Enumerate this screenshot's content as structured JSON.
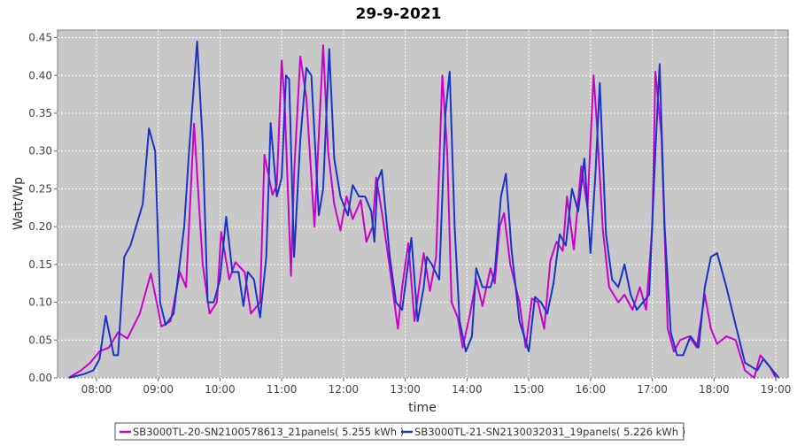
{
  "chart_data": {
    "type": "line",
    "title": "29-9-2021",
    "xlabel": "time",
    "ylabel": "Watt/Wp",
    "x_unit": "hours",
    "xlim": [
      7.37,
      19.2
    ],
    "ylim": [
      0,
      0.46
    ],
    "grid": true,
    "legend_position": "bottom",
    "x_ticks": [
      {
        "value": 8,
        "label": "08:00"
      },
      {
        "value": 9,
        "label": "09:00"
      },
      {
        "value": 10,
        "label": "10:00"
      },
      {
        "value": 11,
        "label": "11:00"
      },
      {
        "value": 12,
        "label": "12:00"
      },
      {
        "value": 13,
        "label": "13:00"
      },
      {
        "value": 14,
        "label": "14:00"
      },
      {
        "value": 15,
        "label": "15:00"
      },
      {
        "value": 16,
        "label": "16:00"
      },
      {
        "value": 17,
        "label": "17:00"
      },
      {
        "value": 18,
        "label": "18:00"
      },
      {
        "value": 19,
        "label": "19:00"
      }
    ],
    "y_ticks": [
      {
        "value": 0.0,
        "label": "0.00"
      },
      {
        "value": 0.05,
        "label": "0.05"
      },
      {
        "value": 0.1,
        "label": "0.10"
      },
      {
        "value": 0.15,
        "label": "0.15"
      },
      {
        "value": 0.2,
        "label": "0.20"
      },
      {
        "value": 0.25,
        "label": "0.25"
      },
      {
        "value": 0.3,
        "label": "0.30"
      },
      {
        "value": 0.35,
        "label": "0.35"
      },
      {
        "value": 0.4,
        "label": "0.40"
      },
      {
        "value": 0.45,
        "label": "0.45"
      }
    ],
    "series": [
      {
        "name": "SB3000TL-20-SN2100578613_21panels( 5.255 kWh )",
        "color": "#cc00cc",
        "points": [
          [
            7.55,
            0.0
          ],
          [
            7.75,
            0.01
          ],
          [
            7.9,
            0.02
          ],
          [
            8.05,
            0.035
          ],
          [
            8.2,
            0.04
          ],
          [
            8.35,
            0.06
          ],
          [
            8.5,
            0.052
          ],
          [
            8.7,
            0.085
          ],
          [
            8.88,
            0.138
          ],
          [
            9.0,
            0.09
          ],
          [
            9.05,
            0.068
          ],
          [
            9.2,
            0.075
          ],
          [
            9.35,
            0.14
          ],
          [
            9.45,
            0.12
          ],
          [
            9.58,
            0.336
          ],
          [
            9.72,
            0.15
          ],
          [
            9.83,
            0.085
          ],
          [
            9.95,
            0.1
          ],
          [
            10.02,
            0.193
          ],
          [
            10.15,
            0.13
          ],
          [
            10.25,
            0.153
          ],
          [
            10.4,
            0.14
          ],
          [
            10.5,
            0.085
          ],
          [
            10.65,
            0.1
          ],
          [
            10.72,
            0.295
          ],
          [
            10.85,
            0.242
          ],
          [
            10.92,
            0.255
          ],
          [
            11.0,
            0.42
          ],
          [
            11.05,
            0.36
          ],
          [
            11.15,
            0.135
          ],
          [
            11.2,
            0.27
          ],
          [
            11.3,
            0.425
          ],
          [
            11.4,
            0.37
          ],
          [
            11.53,
            0.2
          ],
          [
            11.67,
            0.44
          ],
          [
            11.75,
            0.3
          ],
          [
            11.85,
            0.23
          ],
          [
            11.95,
            0.195
          ],
          [
            12.05,
            0.24
          ],
          [
            12.15,
            0.21
          ],
          [
            12.28,
            0.235
          ],
          [
            12.37,
            0.18
          ],
          [
            12.47,
            0.2
          ],
          [
            12.53,
            0.265
          ],
          [
            12.63,
            0.215
          ],
          [
            12.75,
            0.145
          ],
          [
            12.88,
            0.065
          ],
          [
            12.95,
            0.12
          ],
          [
            13.05,
            0.178
          ],
          [
            13.15,
            0.075
          ],
          [
            13.3,
            0.165
          ],
          [
            13.4,
            0.115
          ],
          [
            13.5,
            0.16
          ],
          [
            13.6,
            0.4
          ],
          [
            13.68,
            0.3
          ],
          [
            13.75,
            0.1
          ],
          [
            13.85,
            0.08
          ],
          [
            13.93,
            0.04
          ],
          [
            14.05,
            0.085
          ],
          [
            14.15,
            0.13
          ],
          [
            14.25,
            0.095
          ],
          [
            14.38,
            0.145
          ],
          [
            14.45,
            0.125
          ],
          [
            14.53,
            0.2
          ],
          [
            14.6,
            0.218
          ],
          [
            14.7,
            0.15
          ],
          [
            14.85,
            0.1
          ],
          [
            14.95,
            0.04
          ],
          [
            15.05,
            0.105
          ],
          [
            15.15,
            0.1
          ],
          [
            15.25,
            0.065
          ],
          [
            15.35,
            0.155
          ],
          [
            15.45,
            0.18
          ],
          [
            15.55,
            0.168
          ],
          [
            15.62,
            0.24
          ],
          [
            15.73,
            0.17
          ],
          [
            15.85,
            0.28
          ],
          [
            15.95,
            0.225
          ],
          [
            16.05,
            0.4
          ],
          [
            16.1,
            0.34
          ],
          [
            16.2,
            0.195
          ],
          [
            16.3,
            0.12
          ],
          [
            16.45,
            0.1
          ],
          [
            16.55,
            0.11
          ],
          [
            16.68,
            0.09
          ],
          [
            16.8,
            0.12
          ],
          [
            16.9,
            0.09
          ],
          [
            17.0,
            0.2
          ],
          [
            17.05,
            0.405
          ],
          [
            17.15,
            0.32
          ],
          [
            17.25,
            0.065
          ],
          [
            17.35,
            0.035
          ],
          [
            17.45,
            0.05
          ],
          [
            17.6,
            0.055
          ],
          [
            17.72,
            0.04
          ],
          [
            17.85,
            0.11
          ],
          [
            17.95,
            0.065
          ],
          [
            18.05,
            0.045
          ],
          [
            18.2,
            0.055
          ],
          [
            18.35,
            0.05
          ],
          [
            18.5,
            0.01
          ],
          [
            18.65,
            0.0
          ],
          [
            18.75,
            0.03
          ],
          [
            18.9,
            0.015
          ],
          [
            19.0,
            0.0
          ]
        ]
      },
      {
        "name": "SB3000TL-21-SN2130032031_19panels( 5.226 kWh )",
        "color": "#1a33cc",
        "points": [
          [
            7.55,
            0.0
          ],
          [
            7.8,
            0.005
          ],
          [
            7.95,
            0.01
          ],
          [
            8.05,
            0.025
          ],
          [
            8.15,
            0.082
          ],
          [
            8.28,
            0.03
          ],
          [
            8.35,
            0.03
          ],
          [
            8.45,
            0.16
          ],
          [
            8.55,
            0.175
          ],
          [
            8.75,
            0.23
          ],
          [
            8.85,
            0.33
          ],
          [
            8.95,
            0.3
          ],
          [
            9.03,
            0.1
          ],
          [
            9.12,
            0.07
          ],
          [
            9.25,
            0.085
          ],
          [
            9.42,
            0.2
          ],
          [
            9.5,
            0.3
          ],
          [
            9.63,
            0.445
          ],
          [
            9.72,
            0.31
          ],
          [
            9.8,
            0.1
          ],
          [
            9.9,
            0.1
          ],
          [
            10.0,
            0.13
          ],
          [
            10.1,
            0.213
          ],
          [
            10.2,
            0.14
          ],
          [
            10.3,
            0.14
          ],
          [
            10.38,
            0.095
          ],
          [
            10.45,
            0.14
          ],
          [
            10.55,
            0.13
          ],
          [
            10.65,
            0.08
          ],
          [
            10.75,
            0.16
          ],
          [
            10.82,
            0.337
          ],
          [
            10.92,
            0.24
          ],
          [
            11.0,
            0.265
          ],
          [
            11.07,
            0.4
          ],
          [
            11.12,
            0.395
          ],
          [
            11.2,
            0.16
          ],
          [
            11.3,
            0.315
          ],
          [
            11.4,
            0.41
          ],
          [
            11.48,
            0.4
          ],
          [
            11.6,
            0.215
          ],
          [
            11.67,
            0.25
          ],
          [
            11.77,
            0.435
          ],
          [
            11.85,
            0.29
          ],
          [
            11.95,
            0.24
          ],
          [
            12.07,
            0.215
          ],
          [
            12.15,
            0.255
          ],
          [
            12.25,
            0.24
          ],
          [
            12.35,
            0.24
          ],
          [
            12.45,
            0.22
          ],
          [
            12.5,
            0.18
          ],
          [
            12.55,
            0.26
          ],
          [
            12.62,
            0.275
          ],
          [
            12.75,
            0.16
          ],
          [
            12.85,
            0.1
          ],
          [
            12.95,
            0.09
          ],
          [
            13.1,
            0.185
          ],
          [
            13.2,
            0.075
          ],
          [
            13.3,
            0.12
          ],
          [
            13.35,
            0.16
          ],
          [
            13.43,
            0.15
          ],
          [
            13.55,
            0.13
          ],
          [
            13.65,
            0.35
          ],
          [
            13.72,
            0.405
          ],
          [
            13.8,
            0.2
          ],
          [
            13.88,
            0.075
          ],
          [
            13.98,
            0.035
          ],
          [
            14.08,
            0.055
          ],
          [
            14.15,
            0.145
          ],
          [
            14.25,
            0.12
          ],
          [
            14.38,
            0.12
          ],
          [
            14.45,
            0.14
          ],
          [
            14.55,
            0.24
          ],
          [
            14.63,
            0.27
          ],
          [
            14.72,
            0.17
          ],
          [
            14.85,
            0.075
          ],
          [
            15.0,
            0.035
          ],
          [
            15.1,
            0.107
          ],
          [
            15.2,
            0.1
          ],
          [
            15.3,
            0.085
          ],
          [
            15.4,
            0.125
          ],
          [
            15.5,
            0.19
          ],
          [
            15.6,
            0.175
          ],
          [
            15.7,
            0.25
          ],
          [
            15.8,
            0.22
          ],
          [
            15.9,
            0.29
          ],
          [
            16.0,
            0.165
          ],
          [
            16.08,
            0.27
          ],
          [
            16.15,
            0.39
          ],
          [
            16.25,
            0.19
          ],
          [
            16.35,
            0.13
          ],
          [
            16.45,
            0.12
          ],
          [
            16.55,
            0.15
          ],
          [
            16.65,
            0.11
          ],
          [
            16.75,
            0.09
          ],
          [
            16.85,
            0.1
          ],
          [
            16.95,
            0.11
          ],
          [
            17.05,
            0.3
          ],
          [
            17.12,
            0.415
          ],
          [
            17.2,
            0.2
          ],
          [
            17.3,
            0.06
          ],
          [
            17.4,
            0.03
          ],
          [
            17.5,
            0.03
          ],
          [
            17.62,
            0.055
          ],
          [
            17.75,
            0.04
          ],
          [
            17.85,
            0.12
          ],
          [
            17.95,
            0.16
          ],
          [
            18.05,
            0.165
          ],
          [
            18.2,
            0.12
          ],
          [
            18.35,
            0.07
          ],
          [
            18.5,
            0.02
          ],
          [
            18.6,
            0.015
          ],
          [
            18.7,
            0.01
          ],
          [
            18.8,
            0.025
          ],
          [
            18.9,
            0.015
          ],
          [
            19.05,
            0.0
          ]
        ]
      }
    ]
  }
}
